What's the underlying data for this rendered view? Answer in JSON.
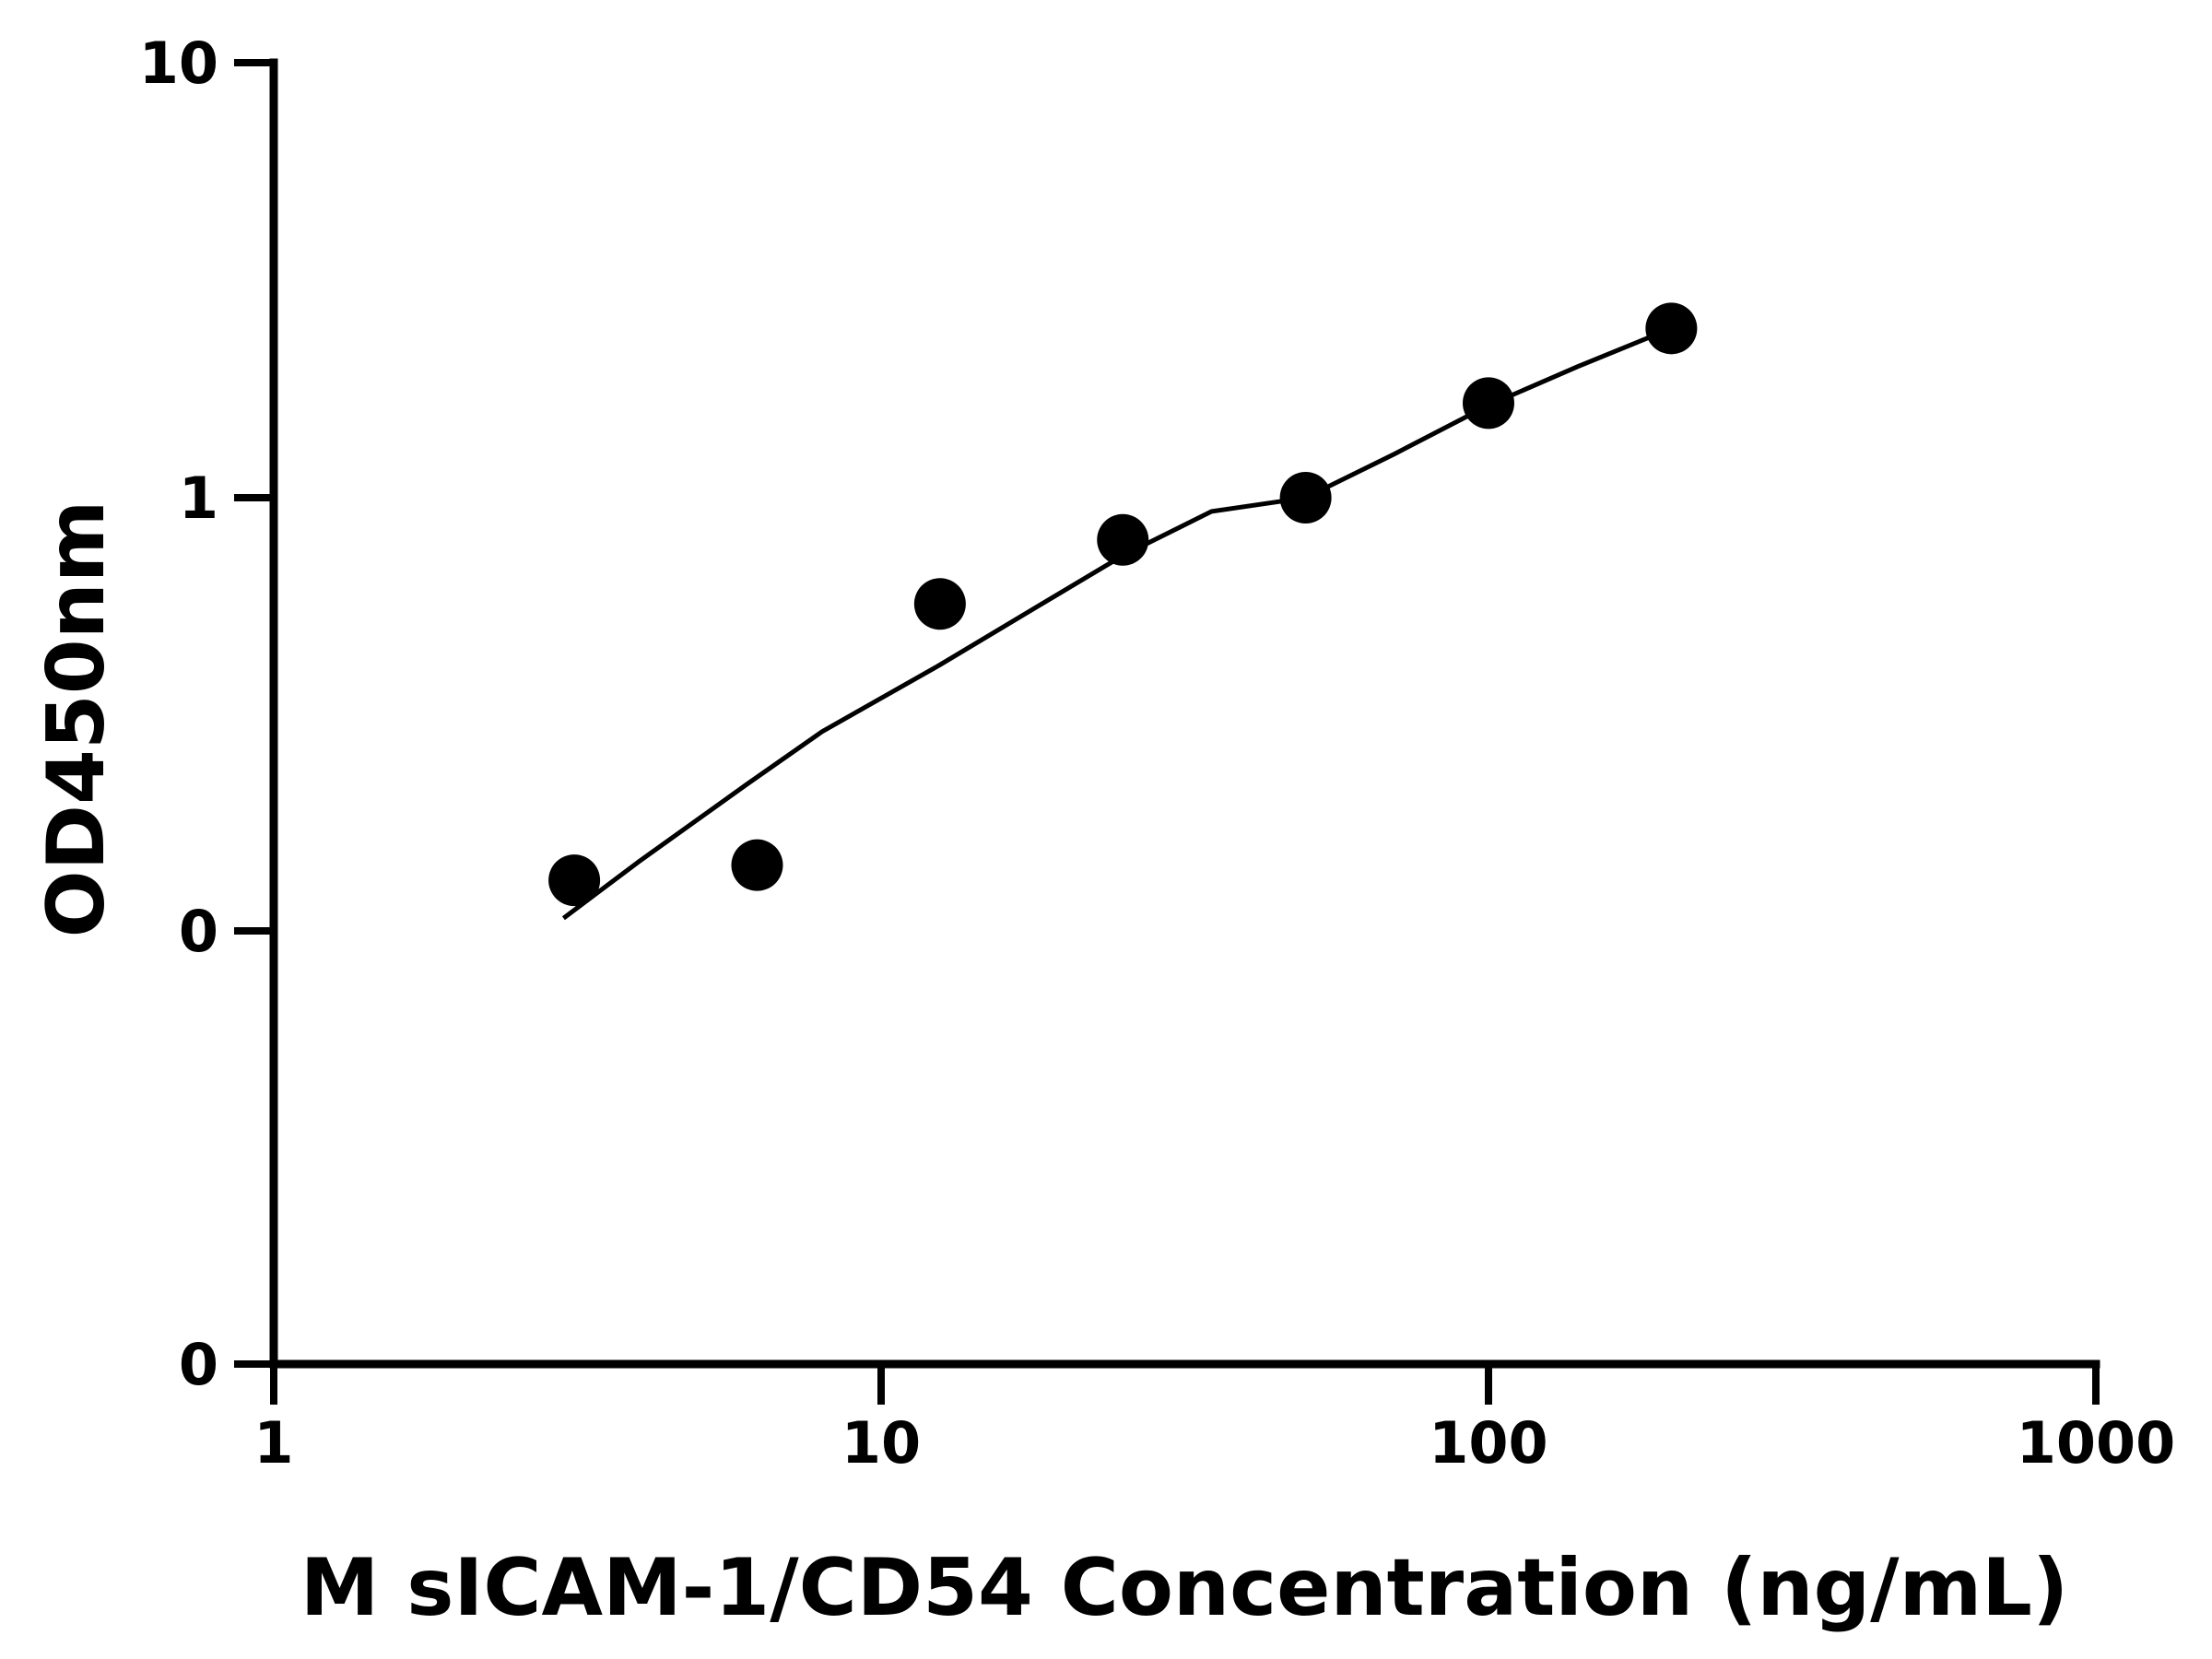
{
  "chart_data": {
    "type": "scatter",
    "title": "",
    "xlabel": "M sICAM-1/CD54 Concentration (ng/mL)",
    "ylabel": "OD450nm",
    "x_scale": "log",
    "xlim": [
      1,
      1000
    ],
    "x_ticks": [
      1,
      10,
      100,
      1000
    ],
    "x_tick_labels": [
      "1",
      "10",
      "100",
      "1000"
    ],
    "y_tick_labels": [
      "0",
      "0",
      "1",
      "10"
    ],
    "grid": false,
    "legend": "none",
    "colors": {
      "points": "#000000",
      "curve": "#000000",
      "axes": "#000000"
    },
    "series": [
      {
        "x": [
          3.125,
          6.25,
          12.5,
          25,
          50,
          100,
          200
        ],
        "y": [
          0.132,
          0.143,
          0.57,
          0.8,
          1.0,
          1.65,
          2.45
        ]
      }
    ],
    "fit_curve": {
      "x": [
        3.0,
        4.0,
        6.0,
        8.0,
        12.5,
        18.0,
        25,
        35,
        50,
        70,
        100,
        140,
        200
      ],
      "y": [
        0.108,
        0.146,
        0.219,
        0.29,
        0.413,
        0.56,
        0.736,
        0.93,
        1.0,
        1.26,
        1.63,
        2.0,
        2.45
      ]
    }
  }
}
